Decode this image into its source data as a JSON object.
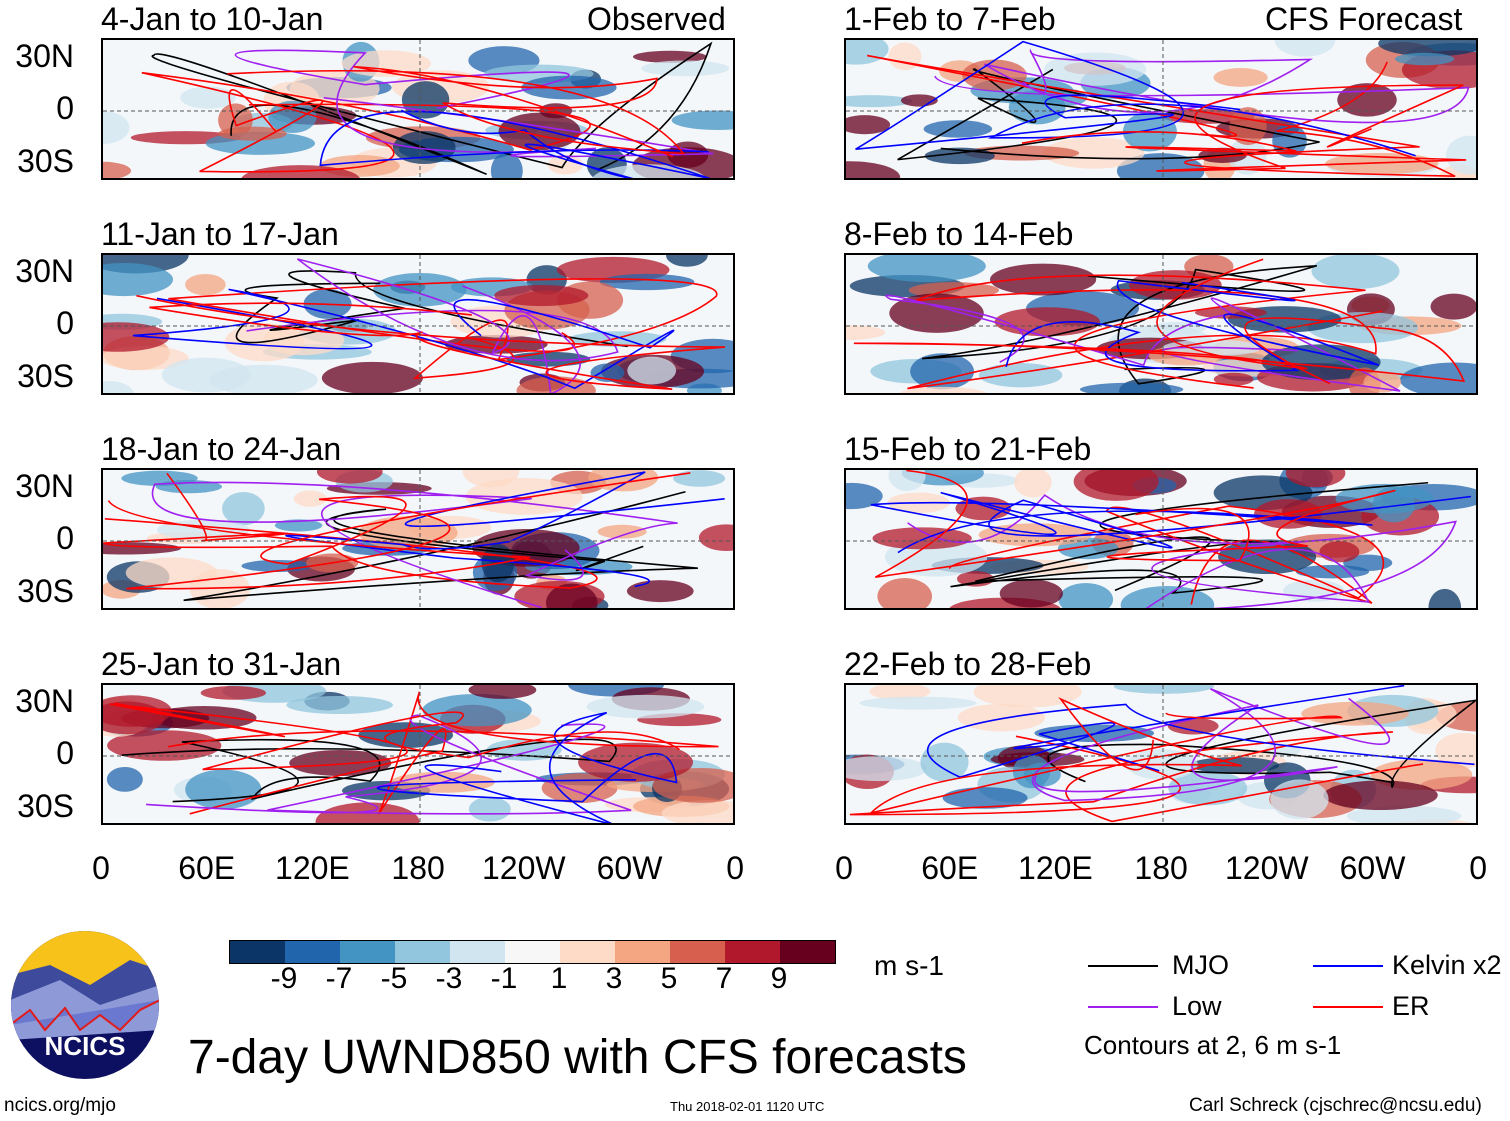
{
  "figure_title": "7-day UWND850 with CFS forecasts",
  "column_labels": {
    "observed": "Observed",
    "forecast": "CFS Forecast"
  },
  "panels": [
    {
      "title": "4-Jan to 10-Jan",
      "type": "observed"
    },
    {
      "title": "11-Jan to 17-Jan",
      "type": "observed"
    },
    {
      "title": "18-Jan to 24-Jan",
      "type": "observed"
    },
    {
      "title": "25-Jan to 31-Jan",
      "type": "observed"
    },
    {
      "title": "1-Feb to 7-Feb",
      "type": "forecast"
    },
    {
      "title": "8-Feb to 14-Feb",
      "type": "forecast"
    },
    {
      "title": "15-Feb to 21-Feb",
      "type": "forecast"
    },
    {
      "title": "22-Feb to 28-Feb",
      "type": "forecast"
    }
  ],
  "lat_labels": [
    "30N",
    "0",
    "30S"
  ],
  "lon_labels": [
    "0",
    "60E",
    "120E",
    "180",
    "120W",
    "60W",
    "0"
  ],
  "colorbar": {
    "units": "m s-1",
    "labels": [
      "-9",
      "-7",
      "-5",
      "-3",
      "-1",
      "1",
      "3",
      "5",
      "7",
      "9"
    ],
    "colors": [
      "#0b3566",
      "#2166ac",
      "#4393c3",
      "#92c5de",
      "#d1e5f0",
      "#f7f7f7",
      "#fddbc7",
      "#f4a582",
      "#d6604d",
      "#b2182b",
      "#67001f"
    ]
  },
  "legend": {
    "items": [
      {
        "label": "MJO",
        "color": "#000000"
      },
      {
        "label": "Kelvin x2",
        "color": "#0000ff"
      },
      {
        "label": "Low",
        "color": "#a020f0"
      },
      {
        "label": "ER",
        "color": "#ff0000"
      }
    ],
    "note": "Contours at 2, 6 m s-1"
  },
  "logo_text": "NCICS",
  "footer": {
    "url": "ncics.org/mjo",
    "timestamp": "Thu 2018-02-01 1120 UTC",
    "author": "Carl Schreck (cjschrec@ncsu.edu)"
  }
}
